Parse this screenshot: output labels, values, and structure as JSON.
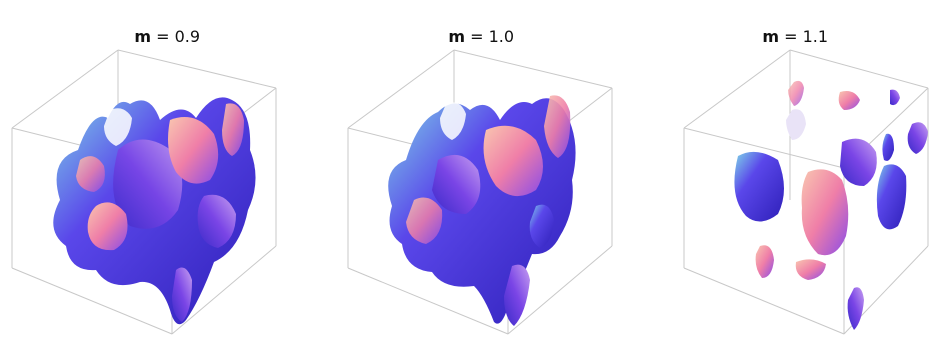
{
  "panels": [
    {
      "title_var": "m",
      "title_eq": " = ",
      "title_val": "0.9"
    },
    {
      "title_var": "m",
      "title_eq": " = ",
      "title_val": "1.0"
    },
    {
      "title_var": "m",
      "title_eq": " = ",
      "title_val": "1.1"
    }
  ],
  "colors": {
    "box_edge": "#c8c8c8",
    "surface_blue": "#4a3ee0",
    "surface_violet": "#8a4be8",
    "surface_pink": "#f08ab0",
    "surface_peach": "#f6b8a0",
    "surface_cyan": "#7fd6e8"
  }
}
